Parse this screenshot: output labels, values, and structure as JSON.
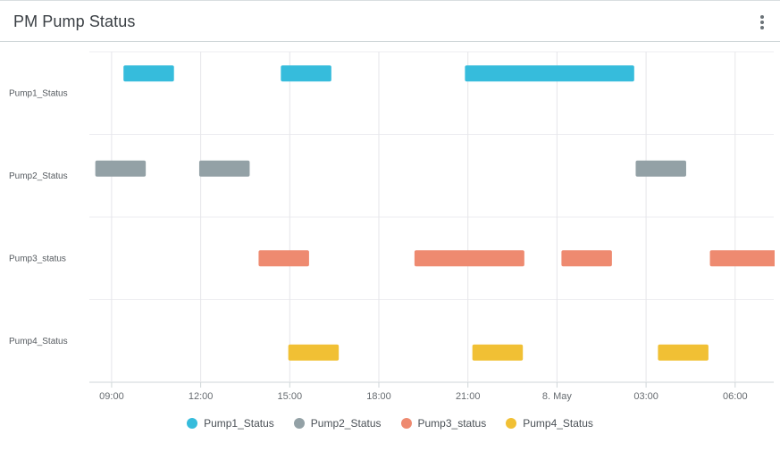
{
  "header": {
    "title": "PM Pump Status",
    "menu_icon": "vertical-ellipsis-icon"
  },
  "chart_data": {
    "type": "gantt",
    "title": "PM Pump Status",
    "x_unit": "hour",
    "x_start_hour": 8.25,
    "x_end_hour": 31.3,
    "x_ticks": [
      {
        "label": "09:00",
        "hour": 9
      },
      {
        "label": "12:00",
        "hour": 12
      },
      {
        "label": "15:00",
        "hour": 15
      },
      {
        "label": "18:00",
        "hour": 18
      },
      {
        "label": "21:00",
        "hour": 21
      },
      {
        "label": "8. May",
        "hour": 24
      },
      {
        "label": "03:00",
        "hour": 27
      },
      {
        "label": "06:00",
        "hour": 30
      }
    ],
    "categories": [
      "Pump1_Status",
      "Pump2_Status",
      "Pump3_status",
      "Pump4_Status"
    ],
    "series": [
      {
        "name": "Pump1_Status",
        "color": "#36bcdc",
        "category": "Pump1_Status",
        "intervals": [
          [
            9.4,
            11.1
          ],
          [
            14.7,
            16.4
          ],
          [
            20.9,
            26.6
          ]
        ]
      },
      {
        "name": "Pump2_Status",
        "color": "#93a1a6",
        "category": "Pump2_Status",
        "intervals": [
          [
            8.45,
            10.15
          ],
          [
            11.95,
            13.65
          ],
          [
            26.65,
            28.35
          ]
        ]
      },
      {
        "name": "Pump3_status",
        "color": "#ee8a70",
        "category": "Pump3_status",
        "intervals": [
          [
            13.95,
            15.65
          ],
          [
            19.2,
            22.9
          ],
          [
            24.15,
            25.85
          ],
          [
            29.15,
            31.6
          ]
        ]
      },
      {
        "name": "Pump4_Status",
        "color": "#f1c034",
        "category": "Pump4_Status",
        "intervals": [
          [
            14.95,
            16.65
          ],
          [
            21.15,
            22.85
          ],
          [
            27.4,
            29.1
          ]
        ]
      }
    ],
    "grid": true,
    "legend_position": "bottom"
  }
}
